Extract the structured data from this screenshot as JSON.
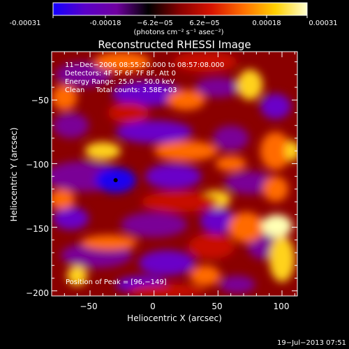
{
  "colorbar": {
    "tick_labels": [
      "-0.00031",
      "-0.00018",
      "−6.2e−05",
      "6.2e−05",
      "0.00018",
      "0.00031"
    ],
    "unit_label": "(photons cm⁻² s⁻¹ asec⁻²)",
    "stops": [
      "#1400ff",
      "#5a00c8",
      "#7000a0",
      "#000000",
      "#8a0000",
      "#d81400",
      "#ff7000",
      "#ffd000",
      "#ffffd0"
    ]
  },
  "chart_data": {
    "type": "heatmap",
    "title": "Reconstructed RHESSI Image",
    "xlabel": "Heliocentric X (arcsec)",
    "ylabel": "Heliocentric Y (arcsec)",
    "xlim": [
      -80,
      112
    ],
    "ylim": [
      -204,
      -12
    ],
    "x_ticks": [
      -50,
      0,
      50,
      100
    ],
    "y_ticks": [
      -50,
      -100,
      -150,
      -200
    ],
    "x_tick_labels": [
      "−50",
      "0",
      "50",
      "100"
    ],
    "y_tick_labels": [
      "−50",
      "−100",
      "−150",
      "−200"
    ],
    "annotations": [
      "11−Dec−2006 08:55:20.000 to 08:57:08.000",
      "Detectors: 4F 5F 6F 7F 8F, Att 0",
      "Energy Range: 25.0 − 50.0 keV",
      "Clean     Total counts: 3.58E+03"
    ],
    "peak_label": "Position of Peak = [96,−149]",
    "peak": [
      96,
      -149
    ],
    "min_marker": [
      -30,
      -113
    ],
    "value_range": [
      -0.00031,
      0.00031
    ]
  },
  "footer": {
    "timestamp": "19−Jul−2013 07:51"
  }
}
